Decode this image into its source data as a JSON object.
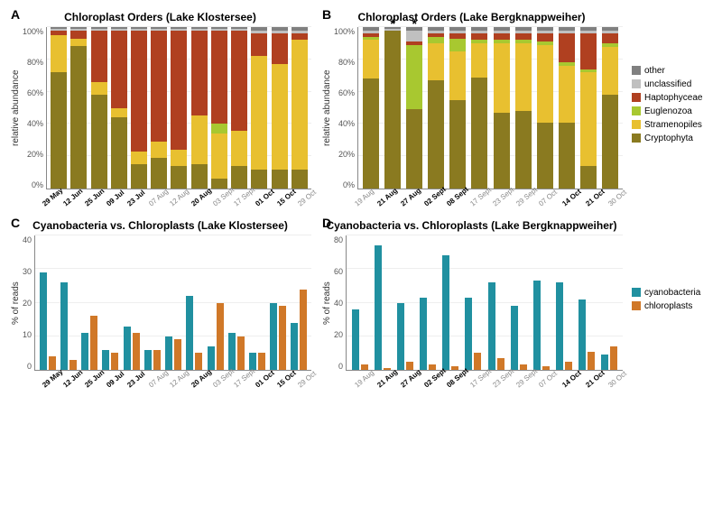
{
  "colors": {
    "other": "#808080",
    "unclassified": "#c0c0c0",
    "Haptophyceae": "#b04020",
    "Euglenozoa": "#a8c830",
    "Stramenopiles": "#e8c030",
    "Cryptophyta": "#8a7a20",
    "cyanobacteria": "#2090a0",
    "chloroplasts": "#d07828",
    "grid": "#eeeeee"
  },
  "panels": {
    "A": {
      "label": "A",
      "title": "Chloroplast Orders (Lake Klostersee)",
      "ylabel": "relative abundance",
      "ymax": 100,
      "ytick": 20,
      "ysuffix": "%",
      "stackOrder": [
        "Cryptophyta",
        "Stramenopiles",
        "Euglenozoa",
        "Haptophyceae",
        "unclassified",
        "other"
      ],
      "x": [
        "29 May",
        "12 Jun",
        "25 Jun",
        "09 Jul",
        "23 Jul",
        "07 Aug",
        "12 Aug",
        "20 Aug",
        "03 Sept",
        "17 Sept",
        "01 Oct",
        "15 Oct",
        "29 Oct"
      ],
      "xbold": [
        true,
        true,
        true,
        true,
        true,
        false,
        false,
        true,
        false,
        false,
        true,
        true,
        false
      ],
      "data": [
        {
          "Cryptophyta": 72,
          "Stramenopiles": 23,
          "Euglenozoa": 0,
          "Haptophyceae": 3,
          "unclassified": 1,
          "other": 1
        },
        {
          "Cryptophyta": 88,
          "Stramenopiles": 5,
          "Euglenozoa": 0,
          "Haptophyceae": 5,
          "unclassified": 1,
          "other": 1
        },
        {
          "Cryptophyta": 58,
          "Stramenopiles": 8,
          "Euglenozoa": 0,
          "Haptophyceae": 32,
          "unclassified": 1,
          "other": 1
        },
        {
          "Cryptophyta": 44,
          "Stramenopiles": 6,
          "Euglenozoa": 0,
          "Haptophyceae": 48,
          "unclassified": 1,
          "other": 1
        },
        {
          "Cryptophyta": 15,
          "Stramenopiles": 8,
          "Euglenozoa": 0,
          "Haptophyceae": 75,
          "unclassified": 1,
          "other": 1
        },
        {
          "Cryptophyta": 19,
          "Stramenopiles": 10,
          "Euglenozoa": 0,
          "Haptophyceae": 69,
          "unclassified": 1,
          "other": 1
        },
        {
          "Cryptophyta": 14,
          "Stramenopiles": 10,
          "Euglenozoa": 0,
          "Haptophyceae": 74,
          "unclassified": 1,
          "other": 1
        },
        {
          "Cryptophyta": 15,
          "Stramenopiles": 30,
          "Euglenozoa": 0,
          "Haptophyceae": 53,
          "unclassified": 1,
          "other": 1
        },
        {
          "Cryptophyta": 6,
          "Stramenopiles": 28,
          "Euglenozoa": 6,
          "Haptophyceae": 58,
          "unclassified": 1,
          "other": 1
        },
        {
          "Cryptophyta": 14,
          "Stramenopiles": 22,
          "Euglenozoa": 0,
          "Haptophyceae": 62,
          "unclassified": 1,
          "other": 1
        },
        {
          "Cryptophyta": 12,
          "Stramenopiles": 70,
          "Euglenozoa": 0,
          "Haptophyceae": 14,
          "unclassified": 2,
          "other": 2
        },
        {
          "Cryptophyta": 12,
          "Stramenopiles": 65,
          "Euglenozoa": 0,
          "Haptophyceae": 19,
          "unclassified": 2,
          "other": 2
        },
        {
          "Cryptophyta": 12,
          "Stramenopiles": 80,
          "Euglenozoa": 0,
          "Haptophyceae": 4,
          "unclassified": 2,
          "other": 2
        }
      ]
    },
    "B": {
      "label": "B",
      "title": "Chloroplast Orders (Lake Bergknappweiher)",
      "ylabel": "relative abundance",
      "ymax": 100,
      "ytick": 20,
      "ysuffix": "%",
      "stackOrder": [
        "Cryptophyta",
        "Stramenopiles",
        "Euglenozoa",
        "Haptophyceae",
        "unclassified",
        "other"
      ],
      "x": [
        "19 Aug",
        "21 Aug",
        "27 Aug",
        "02 Sept",
        "08 Sept",
        "17 Sept",
        "23 Sept",
        "29 Sept",
        "07 Oct",
        "14 Oct",
        "21 Oct",
        "30 Oct"
      ],
      "xbold": [
        false,
        true,
        true,
        true,
        true,
        false,
        false,
        false,
        false,
        true,
        true,
        false
      ],
      "annotations": {
        "1": "*",
        "2": "*"
      },
      "data": [
        {
          "Cryptophyta": 68,
          "Stramenopiles": 24,
          "Euglenozoa": 2,
          "Haptophyceae": 2,
          "unclassified": 2,
          "other": 2
        },
        {
          "Cryptophyta": 98,
          "Stramenopiles": 0,
          "Euglenozoa": 0,
          "Haptophyceae": 0,
          "unclassified": 1,
          "other": 1
        },
        {
          "Cryptophyta": 49,
          "Stramenopiles": 0,
          "Euglenozoa": 40,
          "Haptophyceae": 2,
          "unclassified": 7,
          "other": 2
        },
        {
          "Cryptophyta": 67,
          "Stramenopiles": 23,
          "Euglenozoa": 4,
          "Haptophyceae": 2,
          "unclassified": 2,
          "other": 2
        },
        {
          "Cryptophyta": 55,
          "Stramenopiles": 30,
          "Euglenozoa": 8,
          "Haptophyceae": 3,
          "unclassified": 2,
          "other": 2
        },
        {
          "Cryptophyta": 69,
          "Stramenopiles": 21,
          "Euglenozoa": 2,
          "Haptophyceae": 4,
          "unclassified": 2,
          "other": 2
        },
        {
          "Cryptophyta": 47,
          "Stramenopiles": 43,
          "Euglenozoa": 2,
          "Haptophyceae": 4,
          "unclassified": 2,
          "other": 2
        },
        {
          "Cryptophyta": 48,
          "Stramenopiles": 42,
          "Euglenozoa": 2,
          "Haptophyceae": 4,
          "unclassified": 2,
          "other": 2
        },
        {
          "Cryptophyta": 41,
          "Stramenopiles": 48,
          "Euglenozoa": 2,
          "Haptophyceae": 5,
          "unclassified": 2,
          "other": 2
        },
        {
          "Cryptophyta": 41,
          "Stramenopiles": 35,
          "Euglenozoa": 2,
          "Haptophyceae": 18,
          "unclassified": 2,
          "other": 2
        },
        {
          "Cryptophyta": 14,
          "Stramenopiles": 58,
          "Euglenozoa": 2,
          "Haptophyceae": 22,
          "unclassified": 2,
          "other": 2
        },
        {
          "Cryptophyta": 58,
          "Stramenopiles": 30,
          "Euglenozoa": 2,
          "Haptophyceae": 6,
          "unclassified": 2,
          "other": 2
        }
      ]
    },
    "C": {
      "label": "C",
      "title": "Cyanobacteria vs. Chloroplasts (Lake Klostersee)",
      "ylabel": "% of reads",
      "ymax": 40,
      "ytick": 10,
      "ysuffix": "",
      "x": [
        "29 May",
        "12 Jun",
        "25 Jun",
        "09 Jul",
        "23 Jul",
        "07 Aug",
        "12 Aug",
        "20 Aug",
        "03 Sept",
        "17 Sept",
        "01 Oct",
        "15 Oct",
        "29 Oct"
      ],
      "xbold": [
        true,
        true,
        true,
        true,
        true,
        false,
        false,
        true,
        false,
        false,
        true,
        true,
        false
      ],
      "series": [
        "cyanobacteria",
        "chloroplasts"
      ],
      "data": [
        {
          "cyanobacteria": 29,
          "chloroplasts": 4
        },
        {
          "cyanobacteria": 26,
          "chloroplasts": 3
        },
        {
          "cyanobacteria": 11,
          "chloroplasts": 16
        },
        {
          "cyanobacteria": 6,
          "chloroplasts": 5
        },
        {
          "cyanobacteria": 13,
          "chloroplasts": 11
        },
        {
          "cyanobacteria": 6,
          "chloroplasts": 6
        },
        {
          "cyanobacteria": 10,
          "chloroplasts": 9
        },
        {
          "cyanobacteria": 22,
          "chloroplasts": 5
        },
        {
          "cyanobacteria": 7,
          "chloroplasts": 20
        },
        {
          "cyanobacteria": 11,
          "chloroplasts": 10
        },
        {
          "cyanobacteria": 5,
          "chloroplasts": 5
        },
        {
          "cyanobacteria": 20,
          "chloroplasts": 19
        },
        {
          "cyanobacteria": 14,
          "chloroplasts": 24
        }
      ]
    },
    "D": {
      "label": "D",
      "title": "Cyanobacteria vs. Chloroplasts (Lake Bergknappweiher)",
      "ylabel": "% of reads",
      "ymax": 80,
      "ytick": 20,
      "ysuffix": "",
      "x": [
        "19 Aug",
        "21 Aug",
        "27 Aug",
        "02 Sept",
        "08 Sept",
        "17 Sept",
        "23 Sept",
        "29 Sept",
        "07 Oct",
        "14 Oct",
        "21 Oct",
        "30 Oct"
      ],
      "xbold": [
        false,
        true,
        true,
        true,
        true,
        false,
        false,
        false,
        false,
        true,
        true,
        false
      ],
      "series": [
        "cyanobacteria",
        "chloroplasts"
      ],
      "data": [
        {
          "cyanobacteria": 36,
          "chloroplasts": 3
        },
        {
          "cyanobacteria": 74,
          "chloroplasts": 1
        },
        {
          "cyanobacteria": 40,
          "chloroplasts": 5
        },
        {
          "cyanobacteria": 43,
          "chloroplasts": 3
        },
        {
          "cyanobacteria": 68,
          "chloroplasts": 2
        },
        {
          "cyanobacteria": 43,
          "chloroplasts": 10
        },
        {
          "cyanobacteria": 52,
          "chloroplasts": 7
        },
        {
          "cyanobacteria": 38,
          "chloroplasts": 3
        },
        {
          "cyanobacteria": 53,
          "chloroplasts": 2
        },
        {
          "cyanobacteria": 52,
          "chloroplasts": 5
        },
        {
          "cyanobacteria": 42,
          "chloroplasts": 11
        },
        {
          "cyanobacteria": 9,
          "chloroplasts": 14
        }
      ]
    }
  },
  "legends": {
    "top": [
      {
        "key": "other",
        "label": "other"
      },
      {
        "key": "unclassified",
        "label": "unclassified"
      },
      {
        "key": "Haptophyceae",
        "label": "Haptophyceae"
      },
      {
        "key": "Euglenozoa",
        "label": "Euglenozoa"
      },
      {
        "key": "Stramenopiles",
        "label": "Stramenopiles"
      },
      {
        "key": "Cryptophyta",
        "label": "Cryptophyta"
      }
    ],
    "bottom": [
      {
        "key": "cyanobacteria",
        "label": "cyanobacteria"
      },
      {
        "key": "chloroplasts",
        "label": "chloroplasts"
      }
    ]
  }
}
